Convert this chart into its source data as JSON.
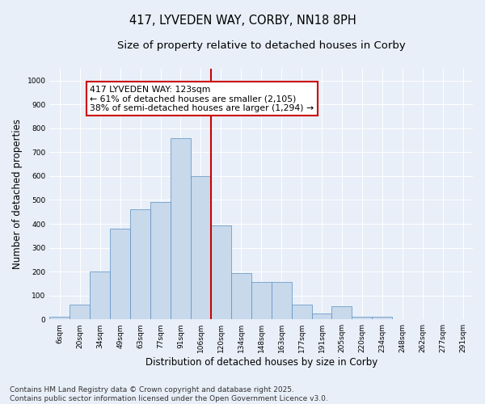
{
  "title": "417, LYVEDEN WAY, CORBY, NN18 8PH",
  "subtitle": "Size of property relative to detached houses in Corby",
  "xlabel": "Distribution of detached houses by size in Corby",
  "ylabel": "Number of detached properties",
  "bar_labels": [
    "6sqm",
    "20sqm",
    "34sqm",
    "49sqm",
    "63sqm",
    "77sqm",
    "91sqm",
    "106sqm",
    "120sqm",
    "134sqm",
    "148sqm",
    "163sqm",
    "177sqm",
    "191sqm",
    "205sqm",
    "220sqm",
    "234sqm",
    "248sqm",
    "262sqm",
    "277sqm",
    "291sqm"
  ],
  "bar_values": [
    10,
    60,
    200,
    380,
    460,
    490,
    760,
    600,
    395,
    195,
    155,
    155,
    60,
    25,
    55,
    10,
    10,
    0,
    0,
    0,
    0
  ],
  "bar_color": "#c8d9ec",
  "bar_edgecolor": "#5a8fc0",
  "vline_color": "#cc0000",
  "annotation_line1": "417 LYVEDEN WAY: 123sqm",
  "annotation_line2": "← 61% of detached houses are smaller (2,105)",
  "annotation_line3": "38% of semi-detached houses are larger (1,294) →",
  "annotation_box_color": "#cc0000",
  "ylim": [
    0,
    1050
  ],
  "yticks": [
    0,
    100,
    200,
    300,
    400,
    500,
    600,
    700,
    800,
    900,
    1000
  ],
  "background_color": "#e8eff8",
  "plot_background": "#e8eff8",
  "footer_text": "Contains HM Land Registry data © Crown copyright and database right 2025.\nContains public sector information licensed under the Open Government Licence v3.0.",
  "title_fontsize": 10.5,
  "subtitle_fontsize": 9.5,
  "tick_fontsize": 6.5,
  "label_fontsize": 8.5,
  "annotation_fontsize": 7.8,
  "footer_fontsize": 6.5
}
